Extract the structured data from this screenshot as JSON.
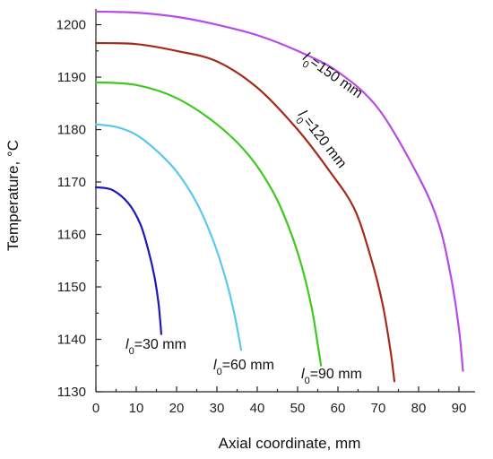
{
  "chart_data": {
    "type": "line",
    "xlabel": "Axial coordinate, mm",
    "ylabel": "Temperature, °C",
    "xlim": [
      0,
      94
    ],
    "ylim": [
      1130,
      1203
    ],
    "xticks": [
      0,
      10,
      20,
      30,
      40,
      50,
      60,
      70,
      80,
      90
    ],
    "yticks": [
      1130,
      1140,
      1150,
      1160,
      1170,
      1180,
      1190,
      1200
    ],
    "grid": false,
    "series": [
      {
        "name": "l0=30 mm",
        "label_var": "l",
        "label_sub": "0",
        "label_rest": "=30 mm",
        "color": "#1a1ab8",
        "x": [
          0,
          4,
          8,
          11,
          13,
          14.5,
          15.5,
          16,
          16.2
        ],
        "y": [
          1169,
          1168.5,
          1166,
          1162,
          1157,
          1152,
          1147,
          1143,
          1141
        ]
      },
      {
        "name": "l0=60 mm",
        "label_var": "l",
        "label_sub": "0",
        "label_rest": "=60 mm",
        "color": "#5bc8ec",
        "x": [
          0,
          5,
          10,
          15,
          20,
          25,
          29,
          32,
          34,
          35.3,
          36
        ],
        "y": [
          1181,
          1180.5,
          1179,
          1176,
          1172,
          1166,
          1159,
          1152,
          1146,
          1141,
          1138
        ]
      },
      {
        "name": "l0=90 mm",
        "label_var": "l",
        "label_sub": "0",
        "label_rest": "=90 mm",
        "color": "#3fc81e",
        "x": [
          0,
          10,
          20,
          30,
          38,
          44,
          48,
          51,
          53.5,
          55,
          55.8
        ],
        "y": [
          1189,
          1188.5,
          1186,
          1181,
          1175,
          1168,
          1161,
          1154,
          1146,
          1139,
          1135
        ]
      },
      {
        "name": "l0=120 mm",
        "label_var": "l",
        "label_sub": "0",
        "label_rest": "=120 mm",
        "color": "#a32b1a",
        "x": [
          0,
          10,
          20,
          30,
          40,
          50,
          58,
          64,
          68,
          71,
          73,
          74
        ],
        "y": [
          1196.5,
          1196.3,
          1195,
          1193,
          1188,
          1180,
          1172,
          1165,
          1156,
          1147,
          1138,
          1132
        ]
      },
      {
        "name": "l0=150 mm",
        "label_var": "l",
        "label_sub": "0",
        "label_rest": "=150 mm",
        "color": "#b64be6",
        "x": [
          0,
          10,
          20,
          30,
          40,
          50,
          60,
          70,
          80,
          85,
          88,
          90,
          91
        ],
        "y": [
          1202.5,
          1202.3,
          1201.5,
          1200,
          1198,
          1195,
          1191,
          1184,
          1171,
          1162,
          1152,
          1142,
          1134
        ]
      }
    ]
  }
}
